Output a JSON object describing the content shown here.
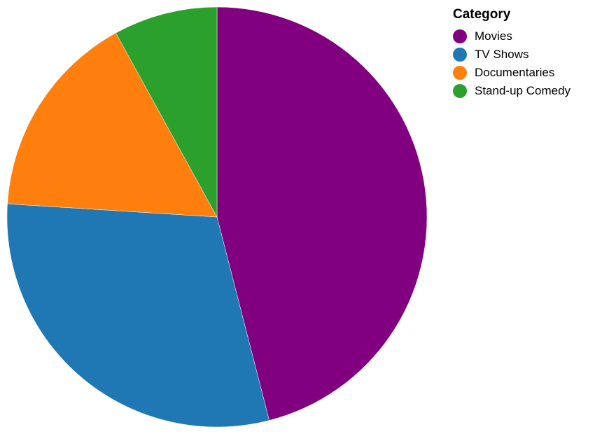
{
  "chart_data": {
    "type": "pie",
    "legend_title": "Category",
    "legend_position": "top-right",
    "start_angle": "12 o'clock, clockwise",
    "slices": [
      {
        "label": "Movies",
        "value": 46,
        "color": "#800080"
      },
      {
        "label": "TV Shows",
        "value": 30,
        "color": "#1f77b4"
      },
      {
        "label": "Documentaries",
        "value": 16,
        "color": "#ff7f0e"
      },
      {
        "label": "Stand-up Comedy",
        "value": 8,
        "color": "#2ca02c"
      }
    ]
  }
}
